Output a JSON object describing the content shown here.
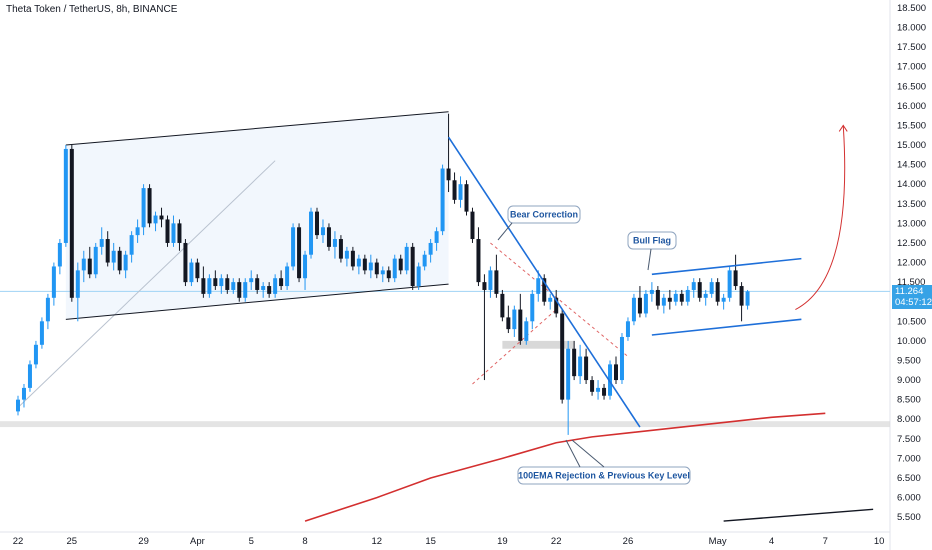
{
  "title": "Theta Token / TetherUS, 8h, BINANCE",
  "price_tag": {
    "price": "11.264",
    "countdown": "04:57:12"
  },
  "colors": {
    "up": "#2196f3",
    "down": "#131722",
    "trend": "#1e6fd9",
    "ema": "#d32f2f",
    "channel": "#131722",
    "zone": "#d8d8d8",
    "price_line": "#9fd3f5"
  },
  "annotations": {
    "bear": "Bear Correction",
    "bull": "Bull Flag",
    "ema": "100EMA Rejection & Previous Key Level"
  },
  "chart_data": {
    "type": "candlestick",
    "title": "Theta Token / TetherUS, 8h, BINANCE",
    "yticks": [
      "5.500",
      "6.000",
      "6.500",
      "7.000",
      "7.500",
      "8.000",
      "8.500",
      "9.000",
      "9.500",
      "10.000",
      "10.500",
      "11.000",
      "11.500",
      "12.000",
      "12.500",
      "13.000",
      "13.500",
      "14.000",
      "14.500",
      "15.000",
      "15.500",
      "16.000",
      "16.500",
      "17.000",
      "17.500",
      "18.000",
      "18.500"
    ],
    "ylim": [
      5.3,
      18.6
    ],
    "xticks": [
      {
        "label": "22",
        "i": 0
      },
      {
        "label": "25",
        "i": 9
      },
      {
        "label": "29",
        "i": 21
      },
      {
        "label": "Apr",
        "i": 30
      },
      {
        "label": "5",
        "i": 39
      },
      {
        "label": "8",
        "i": 48
      },
      {
        "label": "12",
        "i": 60
      },
      {
        "label": "15",
        "i": 69
      },
      {
        "label": "19",
        "i": 81
      },
      {
        "label": "22",
        "i": 90
      },
      {
        "label": "26",
        "i": 102
      },
      {
        "label": "May",
        "i": 117
      },
      {
        "label": "4",
        "i": 126
      },
      {
        "label": "7",
        "i": 135
      },
      {
        "label": "10",
        "i": 144
      }
    ],
    "candles": [
      [
        8.2,
        8.6,
        8.1,
        8.5
      ],
      [
        8.5,
        8.9,
        8.3,
        8.8
      ],
      [
        8.8,
        9.5,
        8.7,
        9.4
      ],
      [
        9.4,
        10.0,
        9.3,
        9.9
      ],
      [
        9.9,
        10.6,
        9.8,
        10.5
      ],
      [
        10.5,
        11.2,
        10.3,
        11.1
      ],
      [
        11.1,
        12.0,
        10.9,
        11.9
      ],
      [
        11.9,
        12.6,
        11.7,
        12.5
      ],
      [
        12.5,
        15.0,
        12.4,
        14.9
      ],
      [
        14.9,
        15.0,
        11.0,
        11.1
      ],
      [
        11.1,
        12.0,
        10.5,
        11.8
      ],
      [
        11.8,
        12.3,
        11.5,
        12.1
      ],
      [
        12.1,
        12.4,
        11.6,
        11.7
      ],
      [
        11.7,
        12.5,
        11.6,
        12.4
      ],
      [
        12.4,
        12.9,
        12.2,
        12.6
      ],
      [
        12.6,
        12.8,
        11.9,
        12.0
      ],
      [
        12.0,
        12.5,
        11.8,
        12.3
      ],
      [
        12.3,
        12.4,
        11.7,
        11.8
      ],
      [
        11.8,
        12.3,
        11.6,
        12.2
      ],
      [
        12.2,
        12.8,
        12.0,
        12.7
      ],
      [
        12.7,
        13.1,
        12.5,
        12.9
      ],
      [
        12.9,
        14.0,
        12.7,
        13.9
      ],
      [
        13.9,
        14.0,
        12.9,
        13.0
      ],
      [
        13.0,
        13.3,
        12.8,
        13.2
      ],
      [
        13.2,
        13.4,
        12.9,
        13.1
      ],
      [
        13.1,
        13.2,
        12.4,
        12.5
      ],
      [
        12.5,
        13.2,
        12.4,
        13.0
      ],
      [
        13.0,
        13.1,
        12.3,
        12.5
      ],
      [
        12.5,
        12.6,
        11.4,
        11.5
      ],
      [
        11.5,
        12.1,
        11.4,
        12.0
      ],
      [
        12.0,
        12.1,
        11.5,
        11.6
      ],
      [
        11.6,
        11.9,
        11.1,
        11.2
      ],
      [
        11.2,
        11.7,
        11.1,
        11.6
      ],
      [
        11.6,
        11.8,
        11.3,
        11.4
      ],
      [
        11.4,
        11.7,
        11.2,
        11.6
      ],
      [
        11.6,
        11.7,
        11.2,
        11.3
      ],
      [
        11.3,
        11.6,
        11.2,
        11.5
      ],
      [
        11.5,
        11.6,
        11.0,
        11.1
      ],
      [
        11.1,
        11.6,
        11.0,
        11.5
      ],
      [
        11.5,
        11.8,
        11.3,
        11.6
      ],
      [
        11.6,
        11.7,
        11.2,
        11.3
      ],
      [
        11.3,
        11.5,
        11.1,
        11.4
      ],
      [
        11.4,
        11.5,
        11.1,
        11.2
      ],
      [
        11.2,
        11.7,
        11.1,
        11.6
      ],
      [
        11.6,
        11.8,
        11.3,
        11.4
      ],
      [
        11.4,
        12.0,
        11.3,
        11.9
      ],
      [
        11.9,
        13.0,
        11.8,
        12.9
      ],
      [
        12.9,
        13.0,
        11.5,
        11.6
      ],
      [
        11.6,
        12.3,
        11.3,
        12.2
      ],
      [
        12.2,
        13.4,
        12.1,
        13.3
      ],
      [
        13.3,
        13.4,
        12.6,
        12.7
      ],
      [
        12.7,
        13.1,
        12.5,
        12.9
      ],
      [
        12.9,
        13.0,
        12.3,
        12.4
      ],
      [
        12.4,
        12.8,
        12.1,
        12.6
      ],
      [
        12.6,
        12.7,
        12.0,
        12.1
      ],
      [
        12.1,
        12.4,
        11.9,
        12.3
      ],
      [
        12.3,
        12.4,
        11.8,
        11.9
      ],
      [
        11.9,
        12.2,
        11.7,
        12.1
      ],
      [
        12.1,
        12.2,
        11.7,
        11.8
      ],
      [
        11.8,
        12.2,
        11.6,
        12.0
      ],
      [
        12.0,
        12.1,
        11.6,
        11.7
      ],
      [
        11.7,
        11.9,
        11.5,
        11.8
      ],
      [
        11.8,
        11.9,
        11.5,
        11.6
      ],
      [
        11.6,
        12.2,
        11.5,
        12.1
      ],
      [
        12.1,
        12.2,
        11.7,
        11.8
      ],
      [
        11.8,
        12.5,
        11.7,
        12.4
      ],
      [
        12.4,
        12.5,
        11.3,
        11.4
      ],
      [
        11.4,
        12.0,
        11.3,
        11.9
      ],
      [
        11.9,
        12.3,
        11.8,
        12.2
      ],
      [
        12.2,
        12.6,
        12.0,
        12.5
      ],
      [
        12.5,
        12.9,
        12.3,
        12.8
      ],
      [
        12.8,
        14.5,
        12.7,
        14.4
      ],
      [
        14.4,
        15.8,
        13.8,
        14.1
      ],
      [
        14.1,
        14.3,
        13.5,
        13.6
      ],
      [
        13.6,
        14.2,
        13.4,
        14.0
      ],
      [
        14.0,
        14.1,
        13.2,
        13.3
      ],
      [
        13.3,
        13.4,
        12.5,
        12.6
      ],
      [
        12.6,
        12.9,
        11.4,
        11.5
      ],
      [
        11.5,
        11.7,
        9.0,
        11.3
      ],
      [
        11.3,
        11.9,
        11.1,
        11.8
      ],
      [
        11.8,
        12.2,
        11.1,
        11.2
      ],
      [
        11.2,
        11.3,
        10.5,
        10.6
      ],
      [
        10.6,
        10.9,
        10.2,
        10.3
      ],
      [
        10.3,
        10.9,
        10.1,
        10.8
      ],
      [
        10.8,
        11.2,
        9.9,
        10.0
      ],
      [
        10.0,
        10.6,
        9.9,
        10.5
      ],
      [
        10.5,
        11.3,
        10.3,
        11.2
      ],
      [
        11.2,
        11.8,
        11.0,
        11.6
      ],
      [
        11.6,
        11.7,
        10.9,
        11.0
      ],
      [
        11.0,
        11.2,
        10.8,
        11.1
      ],
      [
        11.1,
        11.3,
        10.6,
        10.7
      ],
      [
        10.7,
        10.8,
        8.4,
        8.5
      ],
      [
        8.5,
        10.0,
        7.6,
        9.8
      ],
      [
        9.8,
        10.0,
        9.0,
        9.1
      ],
      [
        9.1,
        9.9,
        8.9,
        9.6
      ],
      [
        9.6,
        9.8,
        8.9,
        9.0
      ],
      [
        9.0,
        9.1,
        8.6,
        8.7
      ],
      [
        8.7,
        9.0,
        8.5,
        8.8
      ],
      [
        8.8,
        8.9,
        8.5,
        8.6
      ],
      [
        8.6,
        9.5,
        8.5,
        9.4
      ],
      [
        9.4,
        9.6,
        8.9,
        9.0
      ],
      [
        9.0,
        10.2,
        8.9,
        10.1
      ],
      [
        10.1,
        10.6,
        10.0,
        10.5
      ],
      [
        10.5,
        11.2,
        10.4,
        11.1
      ],
      [
        11.1,
        11.4,
        10.6,
        10.7
      ],
      [
        10.7,
        11.3,
        10.6,
        11.2
      ],
      [
        11.2,
        11.5,
        11.0,
        11.3
      ],
      [
        11.3,
        11.4,
        10.8,
        10.9
      ],
      [
        10.9,
        11.2,
        10.7,
        11.1
      ],
      [
        11.1,
        11.3,
        10.8,
        11.0
      ],
      [
        11.0,
        11.3,
        10.9,
        11.2
      ],
      [
        11.2,
        11.3,
        10.9,
        11.0
      ],
      [
        11.0,
        11.4,
        10.9,
        11.3
      ],
      [
        11.3,
        11.6,
        11.1,
        11.5
      ],
      [
        11.5,
        11.6,
        11.0,
        11.1
      ],
      [
        11.1,
        11.3,
        10.9,
        11.2
      ],
      [
        11.2,
        11.6,
        11.1,
        11.5
      ],
      [
        11.5,
        11.6,
        10.9,
        11.0
      ],
      [
        11.0,
        11.2,
        10.8,
        11.1
      ],
      [
        11.1,
        11.9,
        11.0,
        11.8
      ],
      [
        11.8,
        12.2,
        11.3,
        11.4
      ],
      [
        11.4,
        11.5,
        10.5,
        10.9
      ],
      [
        10.9,
        11.3,
        10.8,
        11.264
      ]
    ],
    "ema100": [
      [
        48,
        5.4
      ],
      [
        60,
        6.0
      ],
      [
        69,
        6.5
      ],
      [
        81,
        7.0
      ],
      [
        90,
        7.4
      ],
      [
        96,
        7.55
      ],
      [
        102,
        7.65
      ],
      [
        111,
        7.8
      ],
      [
        120,
        7.95
      ],
      [
        126,
        8.05
      ],
      [
        135,
        8.15
      ]
    ],
    "channel_upper": [
      [
        8,
        15.0
      ],
      [
        72,
        15.85
      ]
    ],
    "channel_lower": [
      [
        8,
        10.55
      ],
      [
        72,
        11.45
      ]
    ],
    "inner_diagonal": [
      [
        0,
        8.3
      ],
      [
        43,
        14.6
      ]
    ],
    "trendline": [
      [
        72,
        15.2
      ],
      [
        104,
        7.8
      ]
    ],
    "bear_wedge_upper": [
      [
        79,
        12.5
      ],
      [
        102,
        9.6
      ]
    ],
    "bear_wedge_lower": [
      [
        76,
        8.9
      ],
      [
        90,
        10.8
      ]
    ],
    "bull_flag_upper": [
      [
        106,
        11.7
      ],
      [
        131,
        12.1
      ]
    ],
    "bull_flag_lower": [
      [
        106,
        10.15
      ],
      [
        131,
        10.55
      ]
    ],
    "grey_box": [
      [
        81,
        10.0
      ],
      [
        93,
        9.8
      ]
    ],
    "key_level_zone": [
      7.8,
      7.95
    ],
    "projection_arrow": [
      [
        130,
        10.8
      ],
      [
        138,
        15.5
      ]
    ],
    "ticker_line": [
      [
        118,
        5.4
      ],
      [
        143,
        5.7
      ]
    ]
  }
}
